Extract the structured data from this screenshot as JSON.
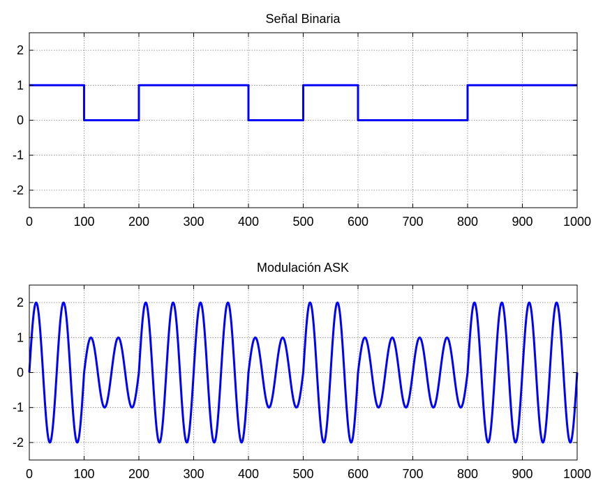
{
  "chart_data": [
    {
      "type": "line",
      "title": "Señal Binaria",
      "xlabel": "",
      "ylabel": "",
      "xlim": [
        0,
        1000
      ],
      "ylim": [
        -2.5,
        2.5
      ],
      "xticks": [
        0,
        100,
        200,
        300,
        400,
        500,
        600,
        700,
        800,
        900,
        1000
      ],
      "yticks": [
        -2,
        -1,
        0,
        1,
        2
      ],
      "grid": true,
      "bits": [
        1,
        0,
        1,
        1,
        0,
        1,
        0,
        0,
        1,
        1
      ],
      "bit_length": 100,
      "series": [
        {
          "x": [
            0,
            100,
            100,
            200,
            200,
            400,
            400,
            500,
            500,
            600,
            600,
            800,
            800,
            1000
          ],
          "y": [
            1,
            1,
            0,
            0,
            1,
            1,
            0,
            0,
            1,
            1,
            0,
            0,
            1,
            1
          ]
        }
      ]
    },
    {
      "type": "line",
      "title": "Modulación ASK",
      "xlabel": "",
      "ylabel": "",
      "xlim": [
        0,
        1000
      ],
      "ylim": [
        -2.5,
        2.5
      ],
      "xticks": [
        0,
        100,
        200,
        300,
        400,
        500,
        600,
        700,
        800,
        900,
        1000
      ],
      "yticks": [
        -2,
        -1,
        0,
        1,
        2
      ],
      "grid": true,
      "amplitude_for_bit_1": 2,
      "amplitude_for_bit_0": 1,
      "carrier_period": 50,
      "carrier": "sine",
      "series": [
        {
          "bits": [
            1,
            0,
            1,
            1,
            0,
            1,
            0,
            0,
            1,
            1
          ]
        }
      ]
    }
  ],
  "colors": {
    "line": "#0000ff",
    "grid": "#7f7f7f",
    "axes": "#000000",
    "background": "#ffffff"
  }
}
